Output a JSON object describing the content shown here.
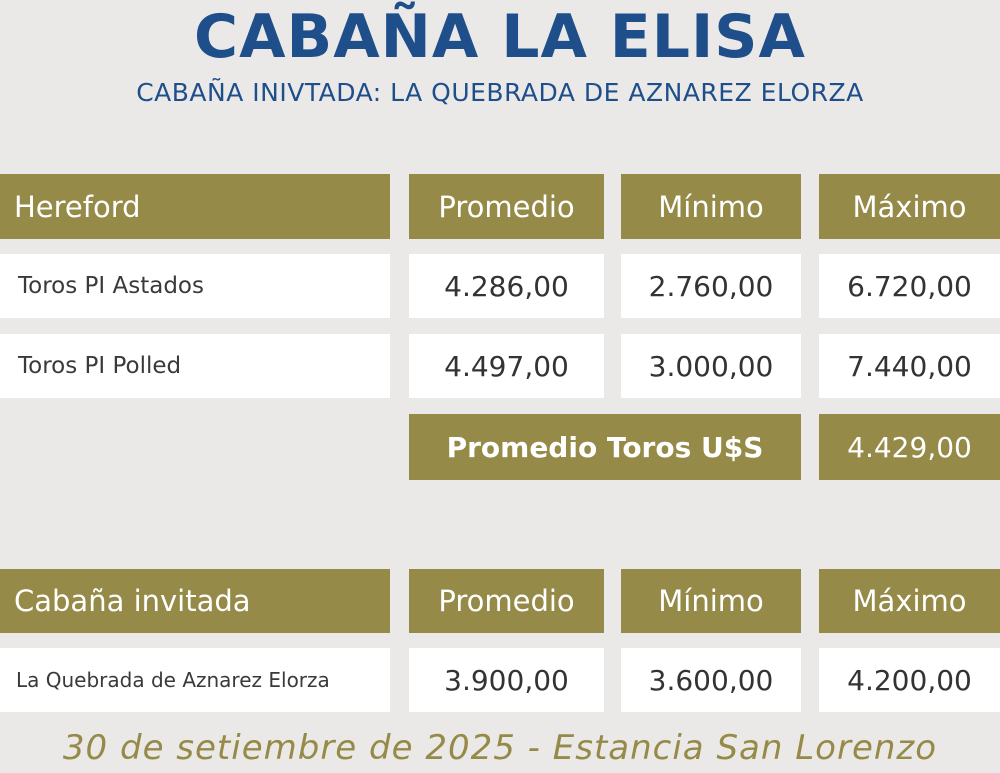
{
  "title": "CABAÑA LA ELISA",
  "subtitle": "CABAÑA INIVTADA: LA QUEBRADA DE AZNAREZ ELORZA",
  "colors": {
    "title": "#1f4f8b",
    "header_bg": "#958a47",
    "header_text": "#ffffff",
    "background": "#ebe9e8",
    "row_bg": "#ffffff"
  },
  "table1": {
    "headers": [
      "Hereford",
      "Promedio",
      "Mínimo",
      "Máximo"
    ],
    "rows": [
      {
        "label": "Toros PI Astados",
        "promedio": "4.286,00",
        "minimo": "2.760,00",
        "maximo": "6.720,00"
      },
      {
        "label": "Toros PI Polled",
        "promedio": "4.497,00",
        "minimo": "3.000,00",
        "maximo": "7.440,00"
      }
    ],
    "total_label": "Promedio Toros U$S",
    "total_value": "4.429,00"
  },
  "table2": {
    "headers": [
      "Cabaña invitada",
      "Promedio",
      "Mínimo",
      "Máximo"
    ],
    "rows": [
      {
        "label": "La Quebrada de Aznarez Elorza",
        "promedio": "3.900,00",
        "minimo": "3.600,00",
        "maximo": "4.200,00"
      }
    ]
  },
  "footer": "30 de setiembre de 2025 - Estancia San Lorenzo"
}
